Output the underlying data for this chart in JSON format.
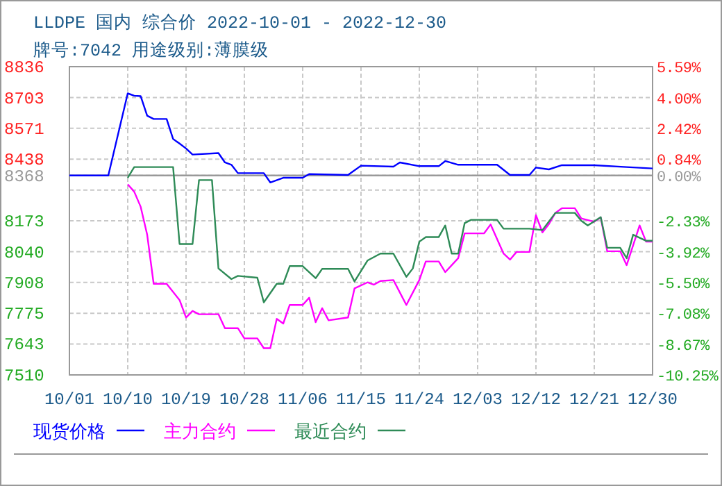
{
  "chart_data": {
    "type": "line",
    "title": "LLDPE 国内 综合价 2022-10-01 - 2022-12-30",
    "subtitle": "牌号:7042 用途级别:薄膜级",
    "xlim": [
      "2022-10-01",
      "2022-12-30"
    ],
    "xticks": [
      {
        "value": "2022-10-01",
        "label": "10/01"
      },
      {
        "value": "2022-10-10",
        "label": "10/10"
      },
      {
        "value": "2022-10-19",
        "label": "10/19"
      },
      {
        "value": "2022-10-28",
        "label": "10/28"
      },
      {
        "value": "2022-11-06",
        "label": "11/06"
      },
      {
        "value": "2022-11-15",
        "label": "11/15"
      },
      {
        "value": "2022-11-24",
        "label": "11/24"
      },
      {
        "value": "2022-12-03",
        "label": "12/03"
      },
      {
        "value": "2022-12-12",
        "label": "12/12"
      },
      {
        "value": "2022-12-21",
        "label": "12/21"
      },
      {
        "value": "2022-12-30",
        "label": "12/30"
      }
    ],
    "ylim": [
      7510,
      8836
    ],
    "yticks": [
      8836,
      8703,
      8571,
      8438,
      8368,
      {
        "value": 8305,
        "label": null
      },
      8173,
      8040,
      7908,
      7775,
      7643,
      7510
    ],
    "y2lim": [
      -10.25,
      5.59
    ],
    "y2ticks": [
      {
        "value": 5.59,
        "label": "5.59%"
      },
      {
        "value": 4.0,
        "label": "4.00%"
      },
      {
        "value": 2.42,
        "label": "2.42%"
      },
      {
        "value": 0.84,
        "label": "0.84%"
      },
      {
        "value": 0.0,
        "label": "0.00%"
      },
      {
        "value": -2.33,
        "label": "-2.33%"
      },
      {
        "value": -3.92,
        "label": "-3.92%"
      },
      {
        "value": -5.5,
        "label": "-5.50%"
      },
      {
        "value": -7.08,
        "label": "-7.08%"
      },
      {
        "value": -8.67,
        "label": "-8.67%"
      },
      {
        "value": -10.25,
        "label": "-10.25%"
      }
    ],
    "ref_lines": [
      {
        "axis": "y",
        "value": 8368,
        "color": "#999999"
      }
    ],
    "grid": true,
    "legend": "bottom",
    "series": [
      {
        "name": "现货价格",
        "color": "#0000ff",
        "x": [
          "2022-10-01",
          "2022-10-07",
          "2022-10-10",
          "2022-10-11",
          "2022-10-12",
          "2022-10-13",
          "2022-10-14",
          "2022-10-16",
          "2022-10-17",
          "2022-10-18",
          "2022-10-19",
          "2022-10-20",
          "2022-10-24",
          "2022-10-25",
          "2022-10-26",
          "2022-10-27",
          "2022-10-31",
          "2022-11-01",
          "2022-11-03",
          "2022-11-06",
          "2022-11-07",
          "2022-11-13",
          "2022-11-15",
          "2022-11-20",
          "2022-11-21",
          "2022-11-24",
          "2022-11-27",
          "2022-11-28",
          "2022-11-30",
          "2022-12-06",
          "2022-12-08",
          "2022-12-11",
          "2022-12-12",
          "2022-12-14",
          "2022-12-16",
          "2022-12-21",
          "2022-12-26",
          "2022-12-30"
        ],
        "values": [
          8368,
          8368,
          8721,
          8711,
          8709,
          8625,
          8611,
          8611,
          8525,
          8505,
          8484,
          8458,
          8464,
          8424,
          8414,
          8378,
          8378,
          8338,
          8358,
          8358,
          8374,
          8370,
          8410,
          8406,
          8424,
          8408,
          8408,
          8430,
          8414,
          8414,
          8370,
          8370,
          8402,
          8394,
          8412,
          8412,
          8404,
          8398
        ]
      },
      {
        "name": "主力合约",
        "color": "#ff00ff",
        "x": [
          "2022-10-10",
          "2022-10-11",
          "2022-10-12",
          "2022-10-13",
          "2022-10-14",
          "2022-10-16",
          "2022-10-18",
          "2022-10-19",
          "2022-10-20",
          "2022-10-21",
          "2022-10-24",
          "2022-10-25",
          "2022-10-27",
          "2022-10-28",
          "2022-10-30",
          "2022-10-31",
          "2022-11-01",
          "2022-11-02",
          "2022-11-03",
          "2022-11-04",
          "2022-11-06",
          "2022-11-07",
          "2022-11-08",
          "2022-11-09",
          "2022-11-10",
          "2022-11-13",
          "2022-11-14",
          "2022-11-16",
          "2022-11-17",
          "2022-11-18",
          "2022-11-20",
          "2022-11-22",
          "2022-11-24",
          "2022-11-25",
          "2022-11-27",
          "2022-11-28",
          "2022-11-30",
          "2022-12-01",
          "2022-12-04",
          "2022-12-05",
          "2022-12-07",
          "2022-12-08",
          "2022-12-09",
          "2022-12-11",
          "2022-12-12",
          "2022-12-13",
          "2022-12-14",
          "2022-12-15",
          "2022-12-16",
          "2022-12-18",
          "2022-12-19",
          "2022-12-21",
          "2022-12-22",
          "2022-12-23",
          "2022-12-25",
          "2022-12-26",
          "2022-12-28",
          "2022-12-29",
          "2022-12-30"
        ],
        "values": [
          8330,
          8298,
          8233,
          8113,
          7902,
          7902,
          7832,
          7757,
          7785,
          7771,
          7771,
          7711,
          7711,
          7667,
          7667,
          7625,
          7625,
          7751,
          7731,
          7811,
          7811,
          7842,
          7737,
          7797,
          7745,
          7757,
          7882,
          7908,
          7898,
          7914,
          7918,
          7811,
          7918,
          7998,
          7998,
          7952,
          8012,
          8119,
          8119,
          8157,
          8032,
          8006,
          8039,
          8039,
          8197,
          8123,
          8159,
          8207,
          8227,
          8227,
          8183,
          8169,
          8187,
          8042,
          8042,
          7982,
          8153,
          8083,
          8083
        ]
      },
      {
        "name": "最近合约",
        "color": "#2e8b57",
        "x": [
          "2022-10-10",
          "2022-10-11",
          "2022-10-17",
          "2022-10-18",
          "2022-10-20",
          "2022-10-21",
          "2022-10-23",
          "2022-10-24",
          "2022-10-26",
          "2022-10-27",
          "2022-10-30",
          "2022-10-31",
          "2022-11-02",
          "2022-11-03",
          "2022-11-04",
          "2022-11-06",
          "2022-11-08",
          "2022-11-09",
          "2022-11-13",
          "2022-11-14",
          "2022-11-16",
          "2022-11-18",
          "2022-11-20",
          "2022-11-22",
          "2022-11-23",
          "2022-11-24",
          "2022-11-25",
          "2022-11-27",
          "2022-11-28",
          "2022-11-29",
          "2022-11-30",
          "2022-12-01",
          "2022-12-02",
          "2022-12-06",
          "2022-12-07",
          "2022-12-11",
          "2022-12-13",
          "2022-12-15",
          "2022-12-18",
          "2022-12-19",
          "2022-12-20",
          "2022-12-22",
          "2022-12-23",
          "2022-12-25",
          "2022-12-26",
          "2022-12-27",
          "2022-12-29",
          "2022-12-30"
        ],
        "values": [
          8358,
          8404,
          8404,
          8073,
          8073,
          8348,
          8348,
          7968,
          7922,
          7936,
          7928,
          7822,
          7902,
          7902,
          7978,
          7978,
          7926,
          7966,
          7966,
          7912,
          8002,
          8032,
          8032,
          7932,
          7968,
          8083,
          8103,
          8103,
          8153,
          8032,
          8032,
          8163,
          8177,
          8177,
          8139,
          8139,
          8133,
          8207,
          8207,
          8173,
          8153,
          8189,
          8057,
          8057,
          8012,
          8113,
          8087,
          8087
        ]
      }
    ]
  }
}
